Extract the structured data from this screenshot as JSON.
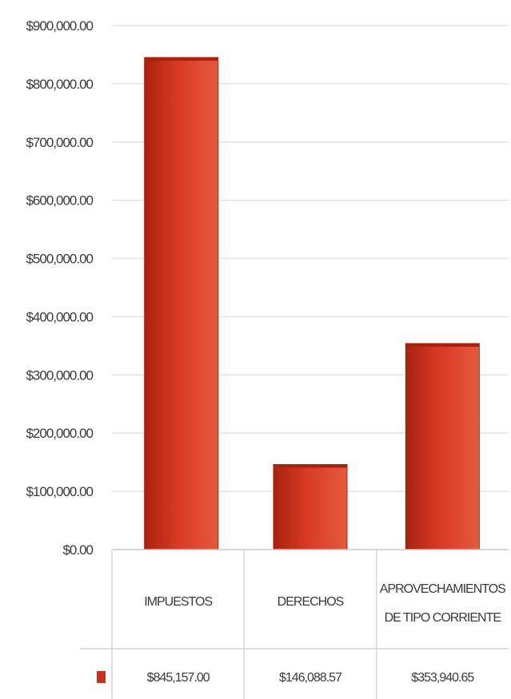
{
  "chart_data": {
    "type": "bar",
    "categories": [
      "IMPUESTOS",
      "DERECHOS",
      "APROVECHAMIENTOS DE TIPO CORRIENTE"
    ],
    "category_lines": [
      [
        "IMPUESTOS"
      ],
      [
        "DERECHOS"
      ],
      [
        "APROVECHAMIENTOS",
        "DE TIPO CORRIENTE"
      ]
    ],
    "values": [
      845157.0,
      146088.57,
      353940.65
    ],
    "value_labels": [
      "$845,157.00",
      "$146,088.57",
      "$353,940.65"
    ],
    "y_ticks": [
      "$0.00",
      "$100,000.00",
      "$200,000.00",
      "$300,000.00",
      "$400,000.00",
      "$500,000.00",
      "$600,000.00",
      "$700,000.00",
      "$800,000.00",
      "$900,000.00"
    ],
    "ylim": [
      0,
      900000
    ],
    "grid": true,
    "legend": "data-table",
    "colors": {
      "bar": "#d83a24",
      "bar_dark": "#a8220f",
      "bar_light": "#e55a3e",
      "legend_key": "#c8321c",
      "grid": "#e3e3e3",
      "text": "#3a3a3a"
    }
  }
}
